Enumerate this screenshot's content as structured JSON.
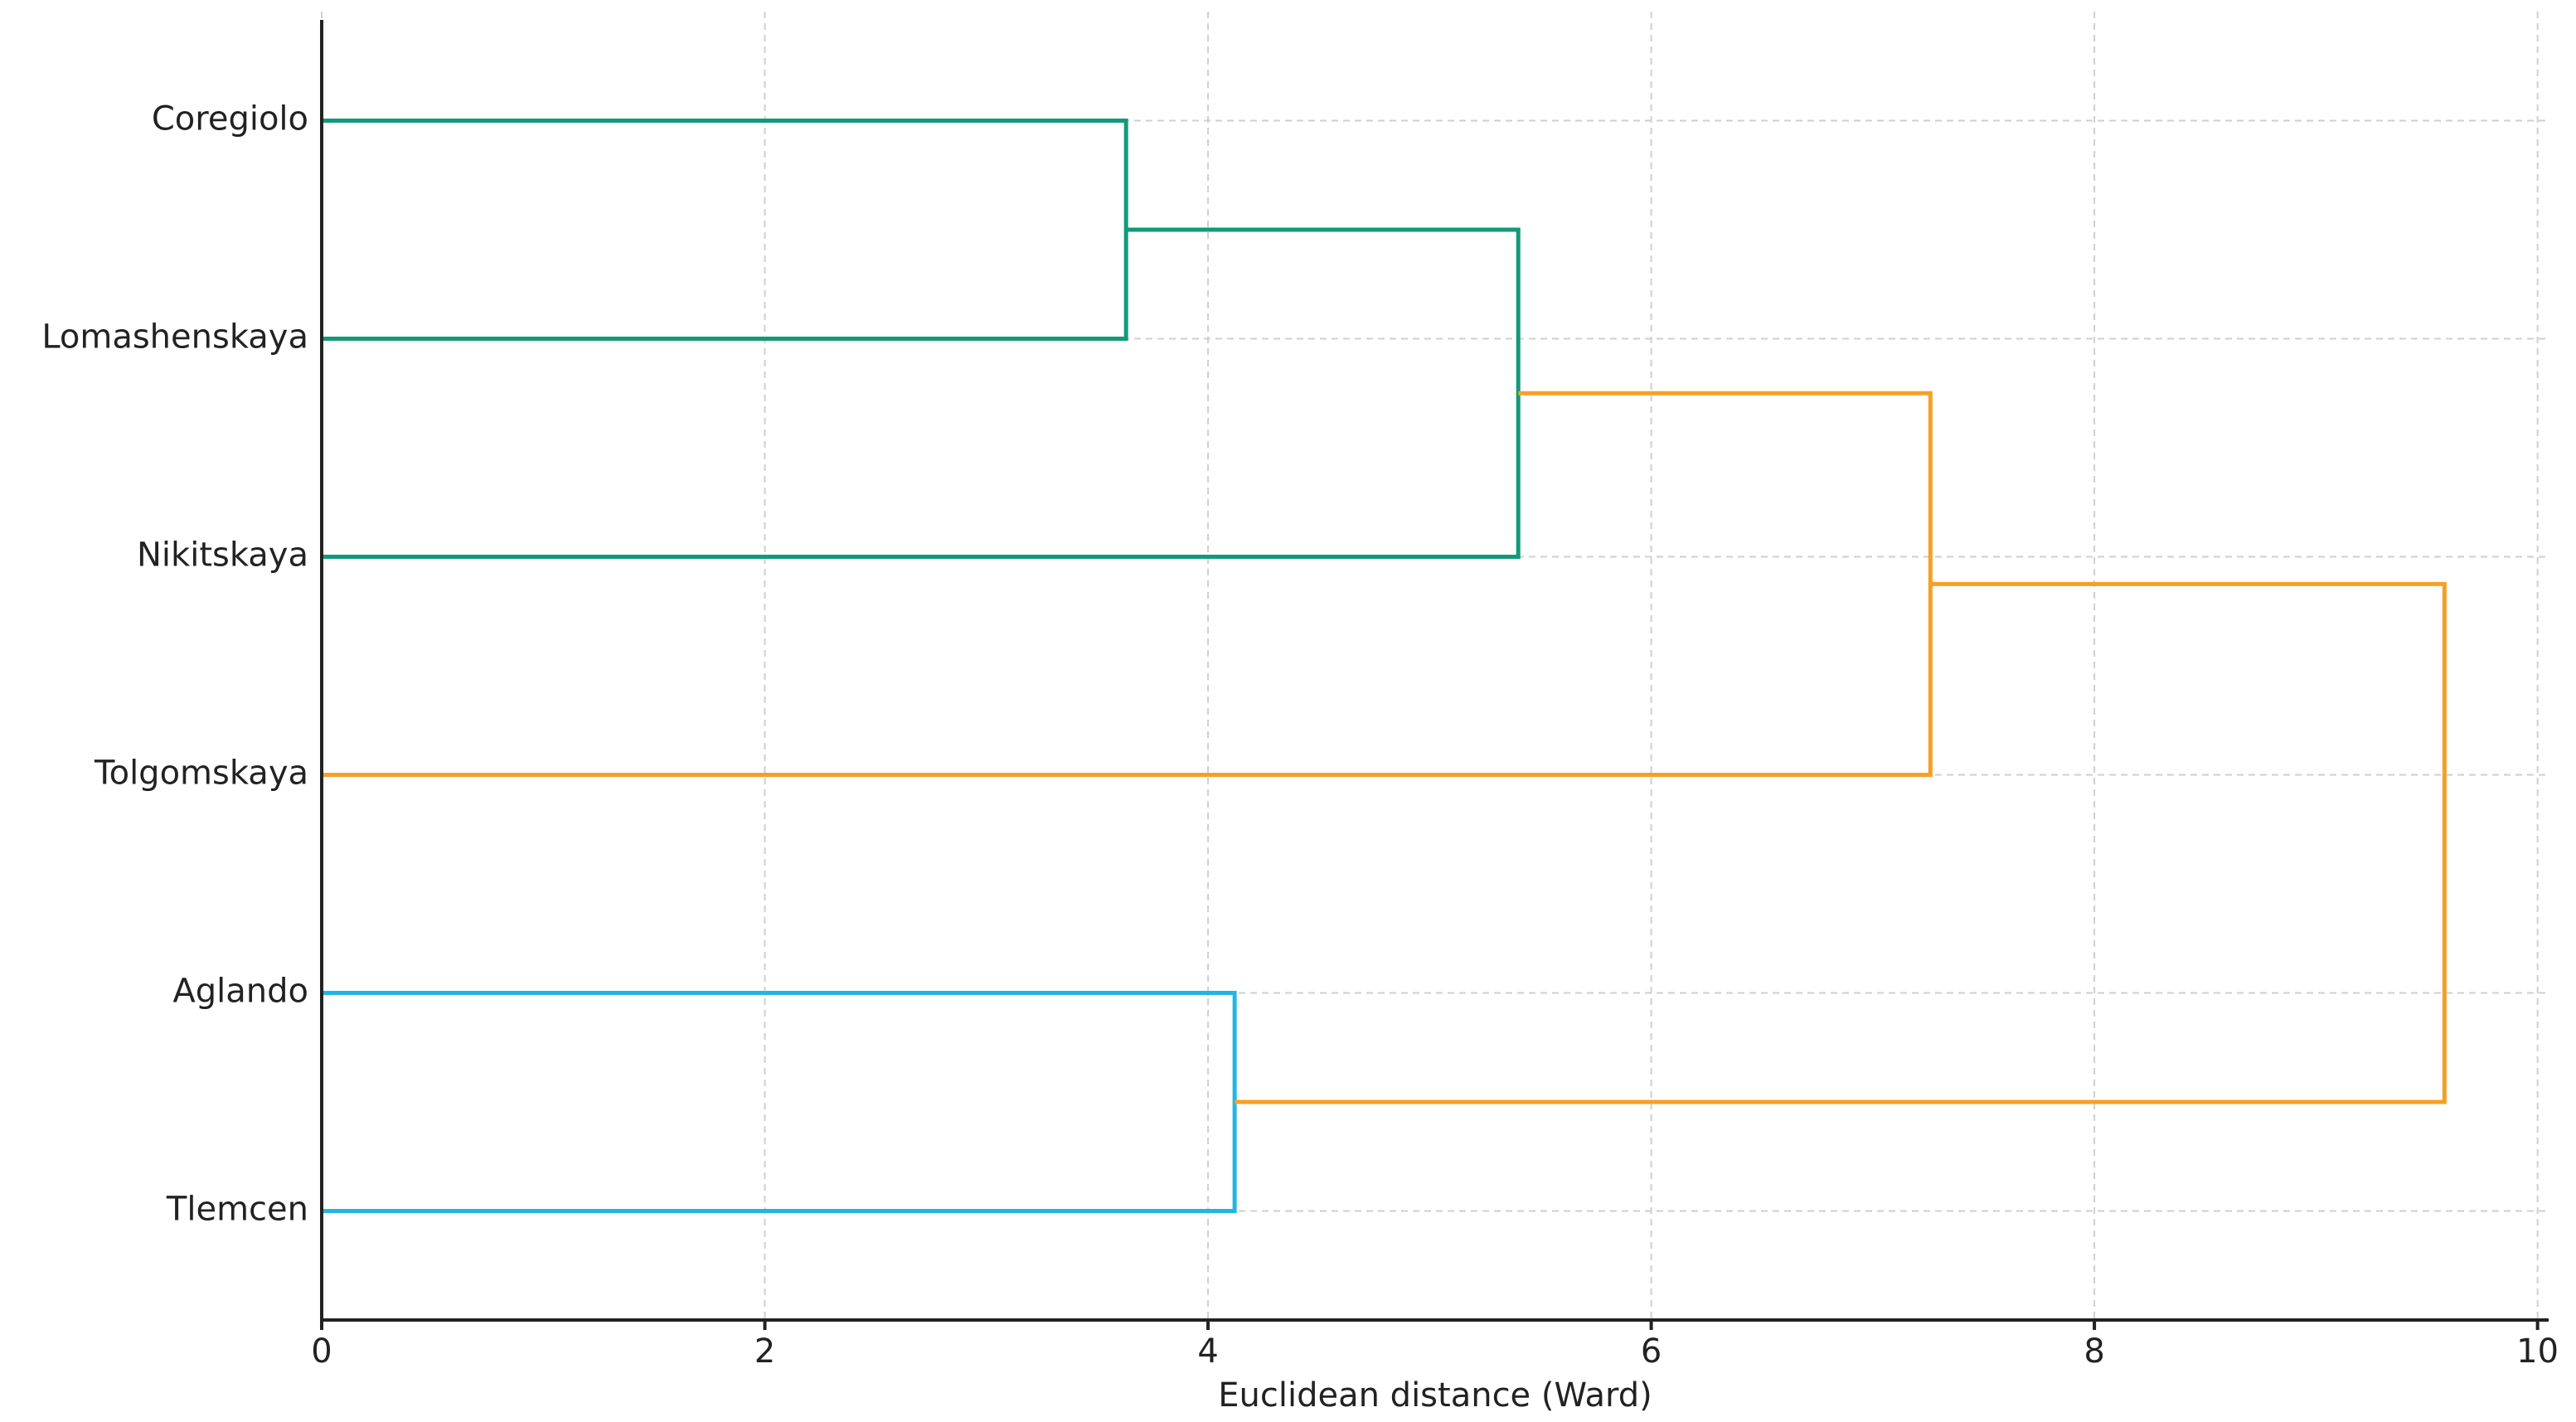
{
  "chart_data": {
    "type": "dendrogram",
    "xlabel": "Euclidean distance (Ward)",
    "labels": [
      "Coregiolo",
      "Lomashenskaya",
      "Nikitskaya",
      "Tolgomskaya",
      "Aglando",
      "Tlemcen"
    ],
    "merges": [
      {
        "children": [
          0,
          1
        ],
        "distance": 3.63,
        "color": "#12997a"
      },
      {
        "children": [
          6,
          2
        ],
        "distance": 5.4,
        "color": "#12997a"
      },
      {
        "children": [
          4,
          5
        ],
        "distance": 4.12,
        "color": "#22b5e3"
      },
      {
        "children": [
          7,
          3
        ],
        "distance": 7.26,
        "color": "#f5a025"
      },
      {
        "children": [
          9,
          8
        ],
        "distance": 9.58,
        "color": "#f5a025"
      }
    ],
    "xlim": [
      0,
      10.05
    ],
    "xticks": [
      0,
      2,
      4,
      6,
      8,
      10
    ],
    "grid": true
  }
}
